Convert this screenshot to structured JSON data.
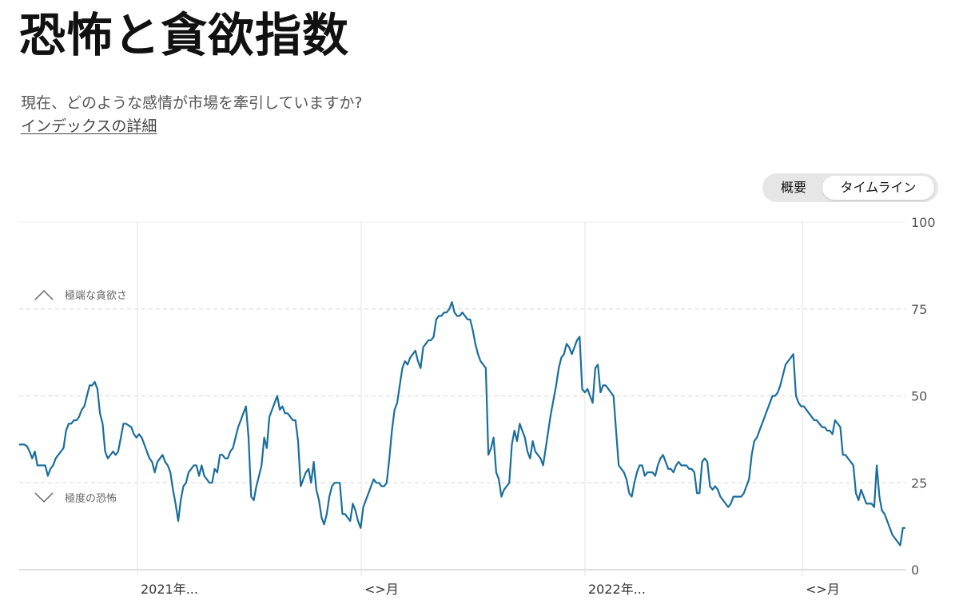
{
  "header": {
    "title": "恐怖と貪欲指数",
    "subtitle": "現在、どのような感情が市場を牽引していますか?",
    "link": "インデックスの詳細"
  },
  "toggle": {
    "option_a": "概要",
    "option_b": "タイムライン",
    "selected": "タイムライン"
  },
  "chart_data": {
    "type": "line",
    "ylim": [
      0,
      100
    ],
    "yticks": [
      "100",
      "75",
      "50",
      "25",
      "0"
    ],
    "xticks": [
      "2021年...",
      "<>月",
      "2022年...",
      "<>月"
    ],
    "zones": {
      "upper": "極端な貪欲さ",
      "lower": "極度の恐怖"
    },
    "grid": true,
    "line_color": "#1a6e9b",
    "values": [
      36,
      36,
      36,
      35.5,
      34,
      32,
      34,
      30,
      30,
      30,
      30,
      27,
      29,
      30,
      32,
      33,
      34,
      35,
      40,
      42,
      42,
      43,
      43,
      44,
      46,
      47,
      50,
      53,
      53,
      54,
      52,
      45,
      42,
      34,
      32,
      33,
      34,
      33,
      34,
      38,
      42,
      42,
      41.5,
      41,
      39,
      38,
      39,
      38,
      36,
      34,
      32,
      31,
      28,
      31,
      32,
      33,
      31,
      30,
      28,
      23,
      19,
      14,
      20,
      24,
      25,
      28,
      29,
      30,
      30,
      27,
      30,
      27,
      26,
      25,
      25,
      29,
      28,
      33,
      33,
      32,
      32,
      34,
      35,
      38,
      41,
      43,
      45,
      47,
      38,
      21,
      20,
      24,
      27,
      30,
      38,
      35,
      44,
      46,
      48,
      50,
      46,
      47,
      45,
      45,
      44,
      43,
      43,
      37,
      24,
      26,
      28,
      29,
      25,
      31,
      23,
      20,
      15,
      13,
      16,
      21,
      24,
      25,
      25,
      25,
      16,
      16,
      15,
      14,
      19,
      17,
      14,
      12,
      18,
      20,
      22,
      24,
      26,
      25,
      25,
      24,
      24,
      25,
      32,
      40,
      46,
      48,
      53,
      58,
      60,
      59,
      61,
      62,
      63,
      60,
      58,
      64,
      65,
      66,
      66,
      67,
      72,
      73,
      73,
      74,
      74,
      75,
      77,
      74,
      73,
      73,
      74,
      73,
      72,
      72,
      69,
      65,
      62,
      60,
      59,
      58,
      33,
      35,
      38,
      28,
      26,
      21,
      23,
      24,
      25,
      36,
      40,
      37,
      42,
      40,
      38,
      34,
      32,
      37,
      34,
      33,
      32,
      30,
      35,
      40,
      45,
      49,
      53,
      58,
      61,
      62,
      65,
      64,
      62,
      64,
      66,
      67,
      52,
      51,
      52,
      50,
      48,
      58,
      59,
      51,
      53,
      53,
      52,
      51,
      50,
      40,
      30,
      29,
      28,
      26,
      22,
      21,
      25,
      28,
      30,
      30,
      27,
      28,
      28,
      28,
      27,
      30,
      32,
      33,
      31,
      29,
      29,
      28,
      30,
      31,
      30,
      30,
      30,
      29,
      29,
      28,
      22,
      22,
      31,
      32,
      31,
      24,
      23,
      24,
      23,
      21,
      20,
      19,
      18,
      19,
      21,
      21,
      21,
      21,
      22,
      24,
      26,
      33,
      37,
      38,
      40,
      42,
      44,
      46,
      48,
      50,
      50,
      51,
      53,
      56,
      59,
      60,
      61,
      62,
      50,
      48,
      47,
      47,
      46,
      45,
      44,
      43,
      43,
      42,
      41,
      41,
      40,
      40,
      39,
      43,
      42,
      41,
      33,
      33,
      32,
      31,
      30,
      22,
      20,
      23,
      21,
      19,
      19,
      19,
      18,
      30,
      21,
      17,
      16,
      14,
      12,
      10,
      9,
      8,
      7,
      12,
      12
    ]
  }
}
